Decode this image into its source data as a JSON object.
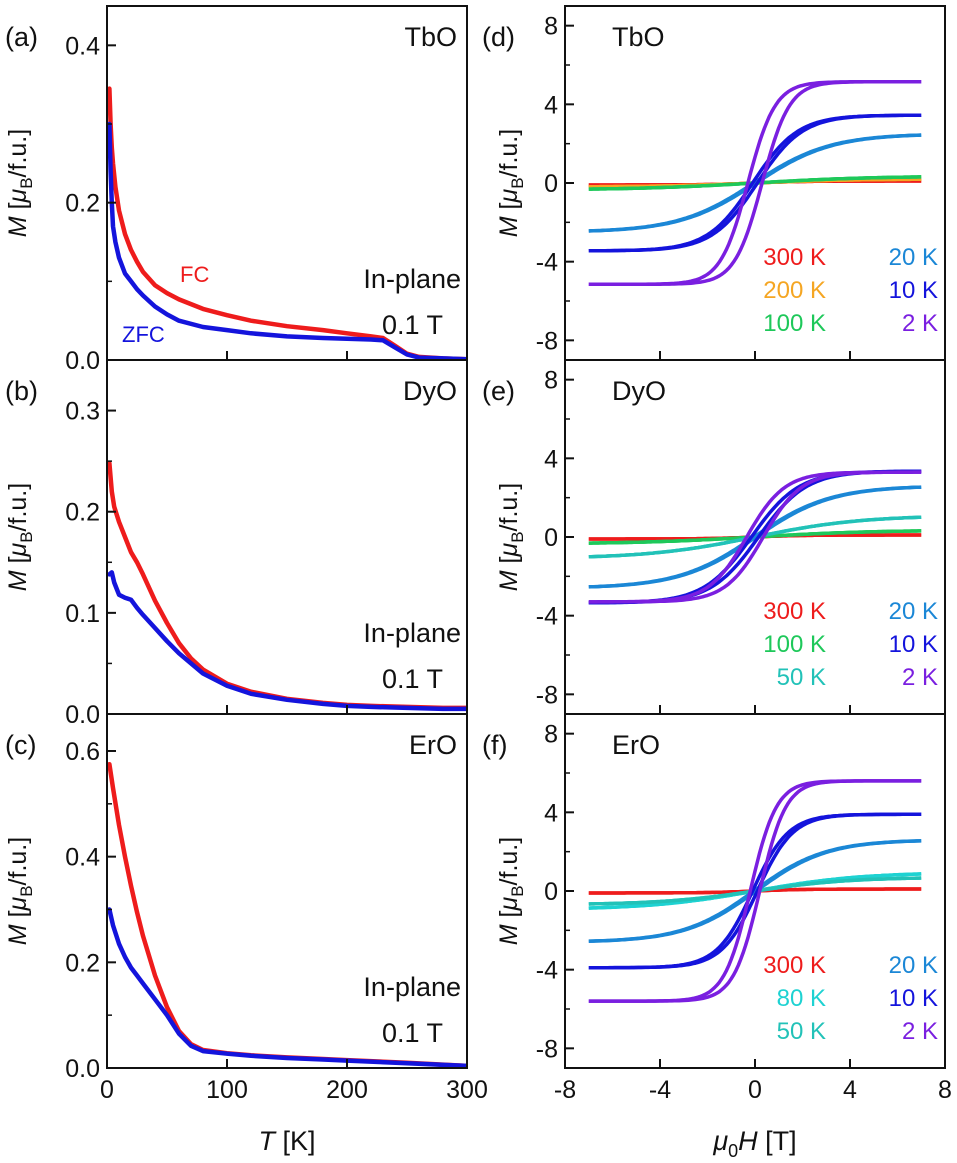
{
  "colors": {
    "red": "#ee1c1c",
    "blue": "#1414dc",
    "orange": "#f5a623",
    "green": "#1ec85a",
    "mediumblue": "#1b87d6",
    "purple": "#7a1fe0",
    "cyan": "#1ed2d2",
    "teal": "#22c2b8"
  },
  "chart_data": [
    {
      "id": "a",
      "type": "line",
      "panel_label": "(a)",
      "sample": "TbO",
      "xlabel_italic": "T",
      "xlabel_rest": " [K]",
      "ylabel_italic": "M",
      "ylabel_rest": " [μB/f.u.]",
      "xlim": [
        0,
        300
      ],
      "ylim": [
        0,
        0.45
      ],
      "xticks": [
        0,
        100,
        200,
        300
      ],
      "xticklabels": [
        "0",
        "100",
        "200",
        "300"
      ],
      "yticks": [
        0,
        0.2,
        0.4
      ],
      "yticklabels": [
        "0.0",
        "0.2",
        "0.4"
      ],
      "annotations": {
        "condition": "In-plane",
        "field": "0.1 T",
        "fc": "FC",
        "zfc": "ZFC"
      },
      "series": [
        {
          "name": "FC",
          "color": "red",
          "x": [
            2,
            3,
            4,
            5,
            7,
            10,
            15,
            20,
            25,
            30,
            40,
            50,
            60,
            80,
            100,
            120,
            150,
            180,
            200,
            220,
            230,
            240,
            250,
            260,
            280,
            300
          ],
          "y": [
            0.345,
            0.3,
            0.27,
            0.25,
            0.22,
            0.19,
            0.16,
            0.14,
            0.125,
            0.112,
            0.095,
            0.085,
            0.077,
            0.065,
            0.057,
            0.05,
            0.043,
            0.038,
            0.034,
            0.03,
            0.028,
            0.018,
            0.008,
            0.004,
            0.002,
            0.001
          ]
        },
        {
          "name": "ZFC",
          "color": "blue",
          "x": [
            2,
            3,
            4,
            5,
            7,
            10,
            15,
            20,
            25,
            30,
            40,
            50,
            60,
            80,
            100,
            120,
            150,
            180,
            200,
            220,
            230,
            240,
            250,
            260,
            280,
            300
          ],
          "y": [
            0.3,
            0.24,
            0.2,
            0.17,
            0.15,
            0.13,
            0.11,
            0.1,
            0.09,
            0.082,
            0.068,
            0.058,
            0.05,
            0.042,
            0.038,
            0.034,
            0.03,
            0.028,
            0.027,
            0.026,
            0.025,
            0.016,
            0.007,
            0.003,
            0.002,
            0.001
          ]
        }
      ]
    },
    {
      "id": "b",
      "type": "line",
      "panel_label": "(b)",
      "sample": "DyO",
      "xlabel_italic": "T",
      "xlabel_rest": " [K]",
      "ylabel_italic": "M",
      "ylabel_rest": " [μB/f.u.]",
      "xlim": [
        0,
        300
      ],
      "ylim": [
        0,
        0.35
      ],
      "xticks": [
        0,
        100,
        200,
        300
      ],
      "xticklabels": [
        "0",
        "100",
        "200",
        "300"
      ],
      "yticks": [
        0,
        0.1,
        0.2,
        0.3
      ],
      "yticklabels": [
        "0.0",
        "0.1",
        "0.2",
        "0.3"
      ],
      "annotations": {
        "condition": "In-plane",
        "field": "0.1 T"
      },
      "series": [
        {
          "name": "FC",
          "color": "red",
          "x": [
            2,
            4,
            6,
            10,
            15,
            20,
            25,
            30,
            40,
            50,
            60,
            70,
            80,
            100,
            120,
            150,
            180,
            200,
            220,
            250,
            280,
            300
          ],
          "y": [
            0.248,
            0.22,
            0.205,
            0.19,
            0.175,
            0.16,
            0.15,
            0.138,
            0.112,
            0.09,
            0.07,
            0.055,
            0.044,
            0.03,
            0.022,
            0.015,
            0.011,
            0.009,
            0.008,
            0.007,
            0.006,
            0.006
          ]
        },
        {
          "name": "ZFC",
          "color": "blue",
          "x": [
            2,
            4,
            6,
            10,
            15,
            20,
            25,
            30,
            40,
            50,
            60,
            70,
            80,
            100,
            120,
            150,
            180,
            200,
            220,
            250,
            280,
            300
          ],
          "y": [
            0.138,
            0.14,
            0.13,
            0.118,
            0.115,
            0.113,
            0.105,
            0.098,
            0.085,
            0.072,
            0.06,
            0.05,
            0.04,
            0.028,
            0.02,
            0.014,
            0.01,
            0.008,
            0.007,
            0.006,
            0.005,
            0.005
          ]
        }
      ]
    },
    {
      "id": "c",
      "type": "line",
      "panel_label": "(c)",
      "sample": "ErO",
      "xlabel_italic": "T",
      "xlabel_rest": " [K]",
      "ylabel_italic": "M",
      "ylabel_rest": " [μB/f.u.]",
      "xlim": [
        0,
        300
      ],
      "ylim": [
        0,
        0.67
      ],
      "xticks": [
        0,
        100,
        200,
        300
      ],
      "xticklabels": [
        "0",
        "100",
        "200",
        "300"
      ],
      "yticks": [
        0,
        0.2,
        0.4,
        0.6
      ],
      "yticklabels": [
        "0.0",
        "0.2",
        "0.4",
        "0.6"
      ],
      "annotations": {
        "condition": "In-plane",
        "field": "0.1 T"
      },
      "series": [
        {
          "name": "FC",
          "color": "red",
          "x": [
            2,
            5,
            10,
            15,
            20,
            25,
            30,
            40,
            50,
            60,
            70,
            80,
            100,
            120,
            150,
            180,
            200,
            250,
            300
          ],
          "y": [
            0.575,
            0.53,
            0.46,
            0.4,
            0.345,
            0.295,
            0.25,
            0.175,
            0.115,
            0.07,
            0.045,
            0.034,
            0.028,
            0.024,
            0.02,
            0.017,
            0.015,
            0.01,
            0.004
          ]
        },
        {
          "name": "ZFC",
          "color": "blue",
          "x": [
            2,
            5,
            10,
            15,
            20,
            25,
            30,
            40,
            50,
            60,
            70,
            80,
            100,
            120,
            150,
            180,
            200,
            250,
            300
          ],
          "y": [
            0.3,
            0.27,
            0.235,
            0.21,
            0.19,
            0.175,
            0.16,
            0.13,
            0.1,
            0.065,
            0.042,
            0.032,
            0.027,
            0.023,
            0.019,
            0.016,
            0.014,
            0.009,
            0.004
          ]
        }
      ]
    },
    {
      "id": "d",
      "type": "line",
      "panel_label": "(d)",
      "sample": "TbO",
      "xlabel_italic": "μ0H",
      "xlabel_rest": " [T]",
      "ylabel_italic": "M",
      "ylabel_rest": " [μB/f.u.]",
      "xlim": [
        -8,
        8
      ],
      "ylim": [
        -9,
        9
      ],
      "xticks": [
        -8,
        -4,
        0,
        4,
        8
      ],
      "xticklabels": [
        "-8",
        "-4",
        "0",
        "4",
        "8"
      ],
      "yticks": [
        -8,
        -4,
        0,
        4,
        8
      ],
      "yticklabels": [
        "-8",
        "-4",
        "0",
        "4",
        "8"
      ],
      "legend": [
        [
          "300 K",
          "red"
        ],
        [
          "20 K",
          "mediumblue"
        ],
        [
          "200 K",
          "orange"
        ],
        [
          "10 K",
          "blue"
        ],
        [
          "100 K",
          "green"
        ],
        [
          "2 K",
          "purple"
        ]
      ],
      "series": [
        {
          "name": "300 K",
          "color": "red",
          "ms": 0.1,
          "h0": 2,
          "hc": 0
        },
        {
          "name": "200 K",
          "color": "orange",
          "ms": 0.2,
          "h0": 4,
          "hc": 0
        },
        {
          "name": "100 K",
          "color": "green",
          "ms": 0.35,
          "h0": 5,
          "hc": 0
        },
        {
          "name": "20 K",
          "color": "mediumblue",
          "ms": 2.5,
          "h0": 3.2,
          "hc": 0.05
        },
        {
          "name": "10 K",
          "color": "blue",
          "ms": 3.45,
          "h0": 1.9,
          "hc": 0.1
        },
        {
          "name": "2 K",
          "color": "purple",
          "ms": 5.15,
          "h0": 1.15,
          "hc": 0.3
        }
      ]
    },
    {
      "id": "e",
      "type": "line",
      "panel_label": "(e)",
      "sample": "DyO",
      "xlabel_italic": "μ0H",
      "xlabel_rest": " [T]",
      "ylabel_italic": "M",
      "ylabel_rest": " [μB/f.u.]",
      "xlim": [
        -8,
        8
      ],
      "ylim": [
        -9,
        9
      ],
      "xticks": [
        -8,
        -4,
        0,
        4,
        8
      ],
      "xticklabels": [
        "-8",
        "-4",
        "0",
        "4",
        "8"
      ],
      "yticks": [
        -8,
        -4,
        0,
        4,
        8
      ],
      "yticklabels": [
        "-8",
        "-4",
        "0",
        "4",
        "8"
      ],
      "legend": [
        [
          "300 K",
          "red"
        ],
        [
          "20 K",
          "mediumblue"
        ],
        [
          "100 K",
          "green"
        ],
        [
          "10 K",
          "blue"
        ],
        [
          "50 K",
          "teal"
        ],
        [
          "2 K",
          "purple"
        ]
      ],
      "series": [
        {
          "name": "300 K",
          "color": "red",
          "ms": 0.1,
          "h0": 2,
          "hc": 0
        },
        {
          "name": "100 K",
          "color": "green",
          "ms": 0.35,
          "h0": 5,
          "hc": 0
        },
        {
          "name": "50 K",
          "color": "teal",
          "ms": 1.1,
          "h0": 4.5,
          "hc": 0
        },
        {
          "name": "20 K",
          "color": "mediumblue",
          "ms": 2.6,
          "h0": 3.2,
          "hc": 0.05
        },
        {
          "name": "10 K",
          "color": "blue",
          "ms": 3.35,
          "h0": 2.0,
          "hc": 0.15
        },
        {
          "name": "2 K",
          "color": "purple",
          "ms": 3.3,
          "h0": 1.6,
          "hc": 0.35
        }
      ]
    },
    {
      "id": "f",
      "type": "line",
      "panel_label": "(f)",
      "sample": "ErO",
      "xlabel_italic": "μ0H",
      "xlabel_rest": " [T]",
      "ylabel_italic": "M",
      "ylabel_rest": " [μB/f.u.]",
      "xlim": [
        -8,
        8
      ],
      "ylim": [
        -9,
        9
      ],
      "xticks": [
        -8,
        -4,
        0,
        4,
        8
      ],
      "xticklabels": [
        "-8",
        "-4",
        "0",
        "4",
        "8"
      ],
      "yticks": [
        -8,
        -4,
        0,
        4,
        8
      ],
      "yticklabels": [
        "-8",
        "-4",
        "0",
        "4",
        "8"
      ],
      "legend": [
        [
          "300 K",
          "red"
        ],
        [
          "20 K",
          "mediumblue"
        ],
        [
          "80 K",
          "cyan"
        ],
        [
          "10 K",
          "blue"
        ],
        [
          "50 K",
          "teal"
        ],
        [
          "2 K",
          "purple"
        ]
      ],
      "series": [
        {
          "name": "300 K",
          "color": "red",
          "ms": 0.1,
          "h0": 2,
          "hc": 0
        },
        {
          "name": "80 K",
          "color": "cyan",
          "ms": 0.95,
          "h0": 4.5,
          "hc": 0
        },
        {
          "name": "50 K",
          "color": "teal",
          "ms": 0.7,
          "h0": 4.0,
          "hc": 0
        },
        {
          "name": "20 K",
          "color": "mediumblue",
          "ms": 2.6,
          "h0": 3.0,
          "hc": 0.05
        },
        {
          "name": "10 K",
          "color": "blue",
          "ms": 3.9,
          "h0": 1.5,
          "hc": 0.1
        },
        {
          "name": "2 K",
          "color": "purple",
          "ms": 5.6,
          "h0": 1.1,
          "hc": 0.2
        }
      ]
    }
  ]
}
